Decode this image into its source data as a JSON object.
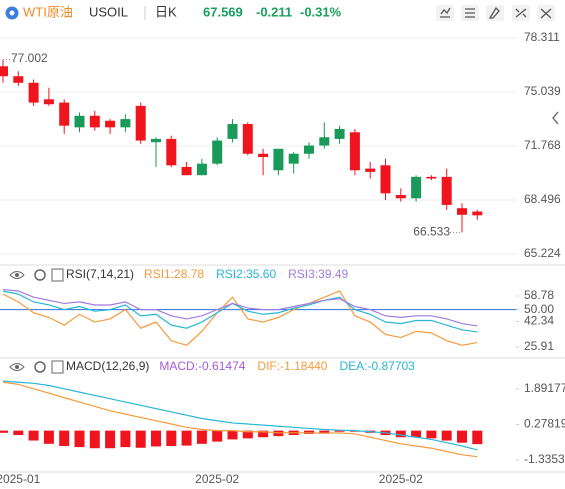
{
  "header": {
    "name": "WTI原油",
    "symbol": "USOIL",
    "period": "日K",
    "price": "67.569",
    "change": "-0.211",
    "change_pct": "-0.31%"
  },
  "chart_data": [
    {
      "type": "candlestick",
      "up_color": "#1a9a5a",
      "down_color": "#f0141e",
      "open": [
        76.6,
        76.0,
        75.6,
        74.6,
        74.4,
        72.9,
        73.6,
        73.3,
        72.9,
        74.2,
        72.0,
        72.2,
        70.5,
        70.0,
        70.7,
        72.2,
        73.1,
        71.3,
        70.3,
        70.7,
        71.3,
        71.8,
        72.2,
        72.6,
        70.4,
        70.6,
        68.8,
        68.6,
        69.9,
        69.9,
        68.0,
        67.8
      ],
      "high": [
        77.002,
        76.3,
        75.8,
        75.3,
        74.6,
        73.8,
        73.9,
        73.4,
        73.7,
        74.4,
        72.3,
        72.4,
        70.8,
        71.0,
        72.3,
        73.4,
        73.2,
        71.6,
        71.6,
        71.4,
        72.0,
        73.2,
        73.0,
        72.8,
        70.8,
        71.0,
        69.2,
        70.0,
        70.0,
        70.4,
        68.3,
        67.9
      ],
      "low": [
        75.6,
        75.4,
        74.2,
        74.2,
        72.5,
        72.6,
        72.7,
        72.5,
        72.6,
        71.9,
        70.5,
        70.5,
        70.0,
        70.0,
        70.6,
        72.0,
        71.2,
        70.0,
        70.0,
        70.1,
        71.0,
        71.6,
        71.9,
        70.0,
        69.8,
        68.5,
        68.4,
        68.4,
        69.7,
        67.9,
        66.533,
        67.3
      ],
      "close": [
        76.0,
        75.6,
        74.4,
        74.3,
        73.0,
        73.6,
        72.9,
        72.9,
        73.4,
        72.1,
        72.2,
        70.6,
        70.0,
        70.7,
        72.1,
        73.1,
        71.3,
        71.1,
        71.6,
        71.3,
        71.8,
        72.3,
        72.8,
        70.3,
        70.2,
        68.9,
        68.6,
        69.9,
        69.8,
        68.2,
        67.6,
        67.569
      ],
      "annotations": [
        77.002,
        66.533
      ],
      "ylim": [
        64.74,
        78.92
      ],
      "yticks": [
        78.311,
        75.039,
        71.768,
        68.496,
        65.224
      ],
      "grid": true
    },
    {
      "type": "line",
      "title": "RSI(7,14,21)",
      "series": [
        {
          "name": "RSI1:28.78",
          "color": "#f59a3c",
          "values": [
            60,
            55,
            48,
            45,
            40,
            47,
            42,
            44,
            50,
            38,
            42,
            30,
            27,
            36,
            48,
            58,
            44,
            42,
            45,
            50,
            54,
            58,
            62,
            46,
            42,
            34,
            32,
            36,
            35,
            30,
            27,
            28.78
          ]
        },
        {
          "name": "RSI2:35.60",
          "color": "#29b6d6",
          "values": [
            62,
            60,
            55,
            53,
            50,
            52,
            49,
            50,
            53,
            46,
            47,
            40,
            38,
            42,
            48,
            54,
            49,
            47,
            48,
            51,
            53,
            56,
            58,
            50,
            47,
            42,
            41,
            43,
            43,
            40,
            37,
            35.6
          ]
        },
        {
          "name": "RSI3:39.49",
          "color": "#a27be0",
          "values": [
            63,
            62,
            58,
            56,
            54,
            55,
            53,
            53,
            55,
            50,
            50,
            46,
            44,
            46,
            50,
            54,
            51,
            50,
            50,
            52,
            54,
            56,
            57,
            52,
            50,
            46,
            45,
            46,
            46,
            44,
            41,
            39.49
          ]
        }
      ],
      "level": 50,
      "level_color": "#2f6fd6",
      "ylim": [
        20.11,
        69.09
      ],
      "yticks": [
        58.78,
        {
          "value": 50,
          "label": "50.00"
        },
        42.34,
        25.91
      ]
    },
    {
      "type": "macd",
      "title": "MACD(12,26,9)",
      "categories": [
        null,
        "2025-01",
        null,
        null,
        null,
        null,
        null,
        null,
        null,
        null,
        null,
        null,
        null,
        null,
        "2025-02",
        null,
        null,
        null,
        null,
        null,
        null,
        null,
        null,
        null,
        null,
        null,
        "2025-02",
        null,
        null,
        null,
        null,
        null
      ],
      "series": [
        {
          "name": "MACD:-0.61474",
          "color": "#a45bd6",
          "bar_color": "#f0141e",
          "values": [
            -0.1,
            -0.2,
            -0.45,
            -0.6,
            -0.7,
            -0.75,
            -0.8,
            -0.8,
            -0.75,
            -0.78,
            -0.72,
            -0.7,
            -0.68,
            -0.6,
            -0.5,
            -0.4,
            -0.35,
            -0.3,
            -0.25,
            -0.2,
            -0.15,
            -0.1,
            -0.05,
            -0.05,
            -0.1,
            -0.2,
            -0.3,
            -0.3,
            -0.35,
            -0.45,
            -0.55,
            -0.61474
          ]
        },
        {
          "name": "DIF:-1.18440",
          "color": "#f59a3c",
          "values": [
            2.2,
            2.1,
            1.9,
            1.7,
            1.5,
            1.3,
            1.1,
            0.9,
            0.75,
            0.6,
            0.45,
            0.3,
            0.15,
            0.05,
            0.0,
            0.0,
            -0.05,
            -0.05,
            -0.1,
            -0.1,
            -0.1,
            -0.12,
            -0.1,
            -0.15,
            -0.3,
            -0.45,
            -0.6,
            -0.7,
            -0.8,
            -0.95,
            -1.1,
            -1.1844
          ]
        },
        {
          "name": "DEA:-0.87703",
          "color": "#29b6d6",
          "values": [
            2.25,
            2.2,
            2.15,
            2.05,
            1.9,
            1.75,
            1.6,
            1.45,
            1.3,
            1.15,
            1.0,
            0.85,
            0.7,
            0.55,
            0.45,
            0.35,
            0.3,
            0.25,
            0.2,
            0.15,
            0.1,
            0.05,
            0.02,
            0.0,
            -0.05,
            -0.1,
            -0.2,
            -0.3,
            -0.4,
            -0.55,
            -0.7,
            -0.87703
          ]
        }
      ],
      "ylim": [
        -1.79,
        2.483
      ],
      "yticks": [
        1.89177,
        0.27819,
        -1.33539
      ]
    }
  ]
}
